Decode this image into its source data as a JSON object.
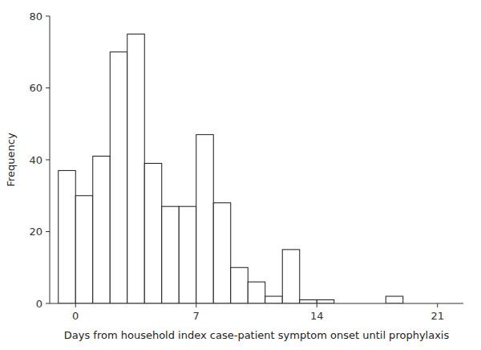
{
  "chart_data": {
    "type": "bar",
    "x": [
      -1,
      0,
      1,
      2,
      3,
      4,
      5,
      6,
      7,
      8,
      9,
      10,
      11,
      12,
      13,
      14,
      18
    ],
    "values": [
      37,
      30,
      41,
      70,
      75,
      39,
      27,
      27,
      47,
      28,
      10,
      6,
      2,
      15,
      1,
      1,
      2
    ],
    "color": "#ffffff",
    "xlabel": "Days from household index case-patient symptom onset until prophylaxis",
    "ylabel": "Frequency",
    "xlim": [
      -1.5,
      22.5
    ],
    "xticks": [
      0,
      7,
      14,
      21
    ],
    "ylim": [
      0,
      80
    ],
    "yticks": [
      0,
      20,
      40,
      60,
      80
    ],
    "grid": false
  }
}
